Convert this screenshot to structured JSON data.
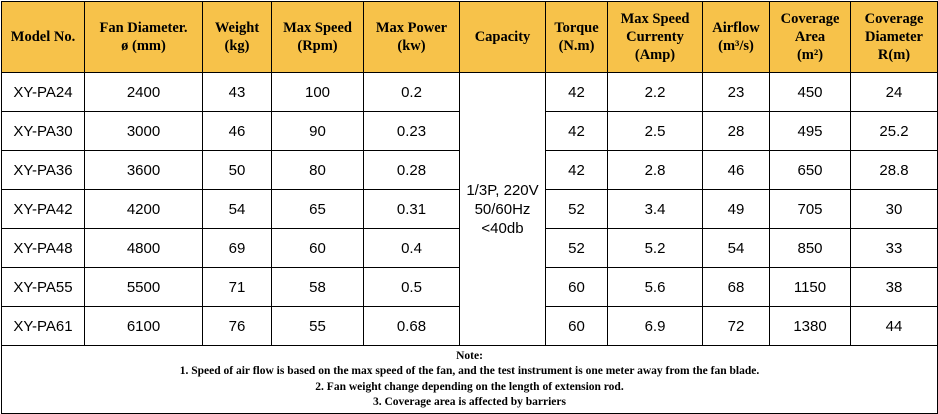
{
  "headers": [
    {
      "lines": [
        "Model No."
      ]
    },
    {
      "lines": [
        "Fan Diameter.",
        "ø (mm)"
      ]
    },
    {
      "lines": [
        "Weight",
        "(kg)"
      ]
    },
    {
      "lines": [
        "Max Speed",
        "(Rpm)"
      ]
    },
    {
      "lines": [
        "Max Power",
        "(kw)"
      ]
    },
    {
      "lines": [
        "Capacity"
      ]
    },
    {
      "lines": [
        "Torque",
        "(N.m)"
      ]
    },
    {
      "lines": [
        "Max Speed",
        "Currenty",
        "(Amp)"
      ]
    },
    {
      "lines": [
        "Airflow",
        "(m³/s)"
      ]
    },
    {
      "lines": [
        "Coverage",
        "Area",
        "(m²)"
      ]
    },
    {
      "lines": [
        "Coverage",
        "Diameter",
        "R(m)"
      ]
    }
  ],
  "capacity": {
    "line1": "1/3P, 220V",
    "line2": "50/60Hz",
    "line3": "<40db"
  },
  "rows": [
    {
      "model": "XY-PA24",
      "diameter": "2400",
      "weight": "43",
      "speed": "100",
      "power": "0.2",
      "torque": "42",
      "current": "2.2",
      "airflow": "23",
      "area": "450",
      "radius": "24"
    },
    {
      "model": "XY-PA30",
      "diameter": "3000",
      "weight": "46",
      "speed": "90",
      "power": "0.23",
      "torque": "42",
      "current": "2.5",
      "airflow": "28",
      "area": "495",
      "radius": "25.2"
    },
    {
      "model": "XY-PA36",
      "diameter": "3600",
      "weight": "50",
      "speed": "80",
      "power": "0.28",
      "torque": "42",
      "current": "2.8",
      "airflow": "46",
      "area": "650",
      "radius": "28.8"
    },
    {
      "model": "XY-PA42",
      "diameter": "4200",
      "weight": "54",
      "speed": "65",
      "power": "0.31",
      "torque": "52",
      "current": "3.4",
      "airflow": "49",
      "area": "705",
      "radius": "30"
    },
    {
      "model": "XY-PA48",
      "diameter": "4800",
      "weight": "69",
      "speed": "60",
      "power": "0.4",
      "torque": "52",
      "current": "5.2",
      "airflow": "54",
      "area": "850",
      "radius": "33"
    },
    {
      "model": "XY-PA55",
      "diameter": "5500",
      "weight": "71",
      "speed": "58",
      "power": "0.5",
      "torque": "60",
      "current": "5.6",
      "airflow": "68",
      "area": "1150",
      "radius": "38"
    },
    {
      "model": "XY-PA61",
      "diameter": "6100",
      "weight": "76",
      "speed": "55",
      "power": "0.68",
      "torque": "60",
      "current": "6.9",
      "airflow": "72",
      "area": "1380",
      "radius": "44"
    }
  ],
  "notes": {
    "title": "Note:",
    "lines": [
      "1. Speed of air flow is based on the max speed of the fan, and the test instrument is one meter away from the fan blade.",
      "2. Fan weight change depending on the length of extension rod.",
      "3. Coverage area is affected by barriers"
    ]
  },
  "colors": {
    "header_background": "#F7C24A",
    "border": "#000000"
  }
}
